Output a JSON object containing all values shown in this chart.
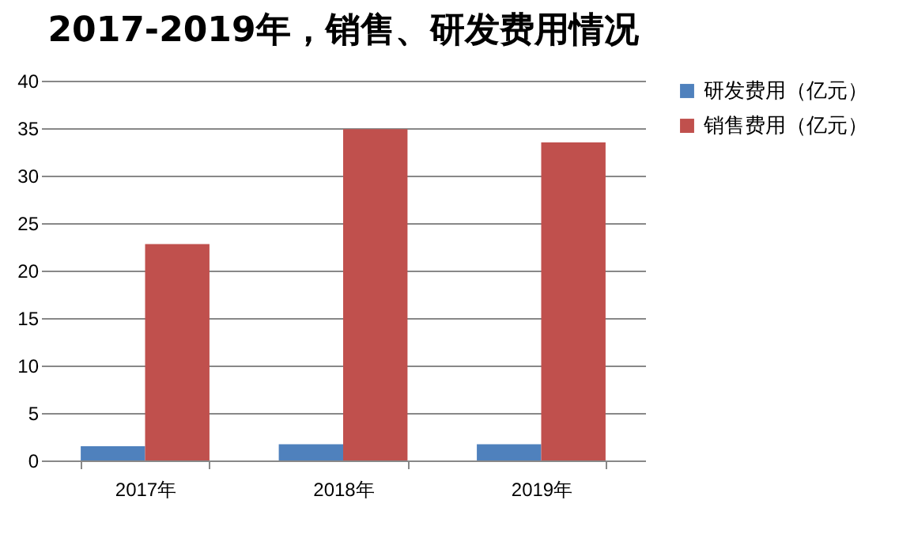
{
  "chart_data": {
    "type": "bar",
    "title": "2017-2019年，销售、研发费用情况",
    "categories": [
      "2017年",
      "2018年",
      "2019年"
    ],
    "series": [
      {
        "name": "研发费用（亿元）",
        "color": "#4f81bd",
        "values": [
          1.5,
          1.7,
          1.7
        ]
      },
      {
        "name": "销售费用（亿元）",
        "color": "#c0504d",
        "values": [
          22.8,
          34.9,
          33.5
        ]
      }
    ],
    "ylim": [
      0,
      40
    ],
    "yticks": [
      0,
      5,
      10,
      15,
      20,
      25,
      30,
      35,
      40
    ],
    "grid": "y",
    "legend": "right"
  }
}
